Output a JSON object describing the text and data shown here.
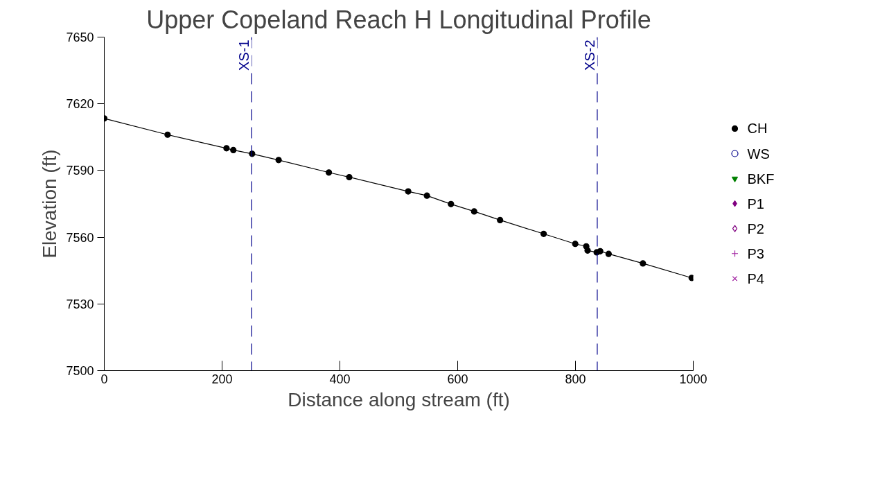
{
  "chart_data": {
    "type": "line",
    "title": "Upper Copeland Reach H Longitudinal Profile",
    "xlabel": "Distance along stream (ft)",
    "ylabel": "Elevation (ft)",
    "xlim": [
      0,
      1000
    ],
    "xticks": [
      0,
      200,
      400,
      600,
      800,
      1000
    ],
    "ylim": [
      7500,
      7650
    ],
    "yticks": [
      7500,
      7530,
      7560,
      7590,
      7620,
      7650
    ],
    "grid": false,
    "legend": "right",
    "line_style": "solid",
    "series": [
      {
        "name": "CH",
        "color": "#000000",
        "marker": "circle",
        "x": [
          0,
          107.5,
          207.5,
          219.1,
          251,
          296,
          381.3,
          415.9,
          516,
          547.8,
          588.6,
          628,
          672,
          746,
          799.6,
          818.3,
          820.6,
          836,
          842,
          856.3,
          914.5,
          997.3
        ],
        "values": [
          7613.4,
          7606.1,
          7600.0,
          7599.2,
          7597.5,
          7594.7,
          7589.1,
          7587.0,
          7580.6,
          7578.7,
          7574.9,
          7571.6,
          7567.7,
          7561.5,
          7557.0,
          7555.9,
          7554.0,
          7553.2,
          7553.7,
          7552.5,
          7548.2,
          7541.7
        ]
      },
      {
        "name": "WS",
        "color": "#00008b",
        "marker": "circle_open"
      },
      {
        "name": "BKF",
        "color": "#008000",
        "marker": "triangle_down"
      },
      {
        "name": "P1",
        "color": "#800080",
        "marker": "diamond"
      },
      {
        "name": "P2",
        "color": "#800080",
        "marker": "diamond_open"
      },
      {
        "name": "P3",
        "color": "#a020a0",
        "marker": "cross"
      },
      {
        "name": "P4",
        "color": "#a020a0",
        "marker": "x"
      }
    ],
    "ref_lines": [
      {
        "axis": "x",
        "value": 250,
        "label": "XS-1",
        "color": "#00008b",
        "line_style": "dashed"
      },
      {
        "axis": "x",
        "value": 837,
        "label": "XS-2",
        "color": "#00008b",
        "line_style": "dashed"
      }
    ]
  }
}
